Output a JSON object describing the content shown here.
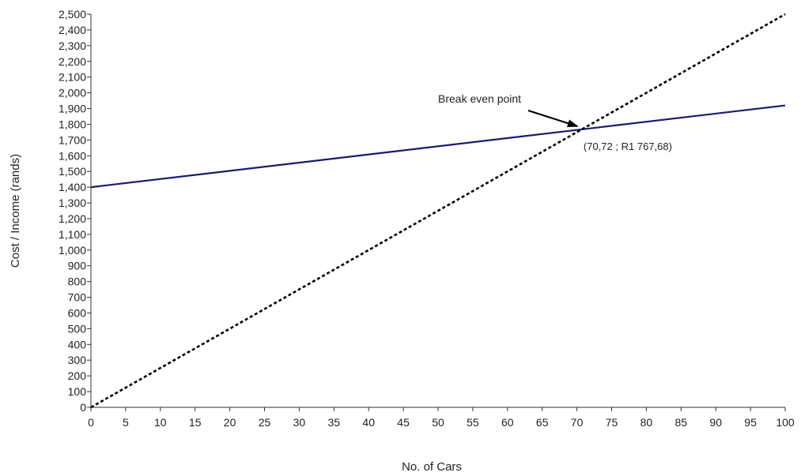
{
  "chart_data": {
    "type": "line",
    "title": "",
    "xlabel": "No. of Cars",
    "ylabel": "Cost / Income (rands)",
    "xlim": [
      0,
      100
    ],
    "ylim": [
      0,
      2500
    ],
    "x_ticks": [
      0,
      5,
      10,
      15,
      20,
      25,
      30,
      35,
      40,
      45,
      50,
      55,
      60,
      65,
      70,
      75,
      80,
      85,
      90,
      95,
      100
    ],
    "x_tick_labels": [
      "0",
      "5",
      "10",
      "15",
      "20",
      "25",
      "30",
      "35",
      "40",
      "45",
      "50",
      "55",
      "60",
      "65",
      "70",
      "75",
      "80",
      "85",
      "90",
      "95",
      "100"
    ],
    "y_ticks": [
      0,
      100,
      200,
      300,
      400,
      500,
      600,
      700,
      800,
      900,
      1000,
      1100,
      1200,
      1300,
      1400,
      1500,
      1600,
      1700,
      1800,
      1900,
      2000,
      2100,
      2200,
      2300,
      2400,
      2500
    ],
    "y_tick_labels": [
      "0",
      "100",
      "200",
      "300",
      "400",
      "500",
      "600",
      "700",
      "800",
      "900",
      "1,000",
      "1,100",
      "1,200",
      "1,300",
      "1,400",
      "1,500",
      "1,600",
      "1,700",
      "1,800",
      "1,900",
      "2,000",
      "2,100",
      "2,200",
      "2,300",
      "2,400",
      "2,500"
    ],
    "grid": false,
    "legend": "none",
    "series": [
      {
        "style": "solid",
        "color": "#1a1a6e",
        "x": [
          0,
          100
        ],
        "y": [
          1400,
          1920
        ]
      },
      {
        "style": "dashed",
        "color": "#000000",
        "x": [
          0,
          100
        ],
        "y": [
          0,
          2500
        ]
      }
    ],
    "annotations": [
      {
        "text": "Break even point",
        "arrow_to": [
          70.72,
          1767.68
        ]
      },
      {
        "text": "(70,72 ; R1 767,68)",
        "point": [
          70.72,
          1767.68
        ]
      }
    ]
  }
}
